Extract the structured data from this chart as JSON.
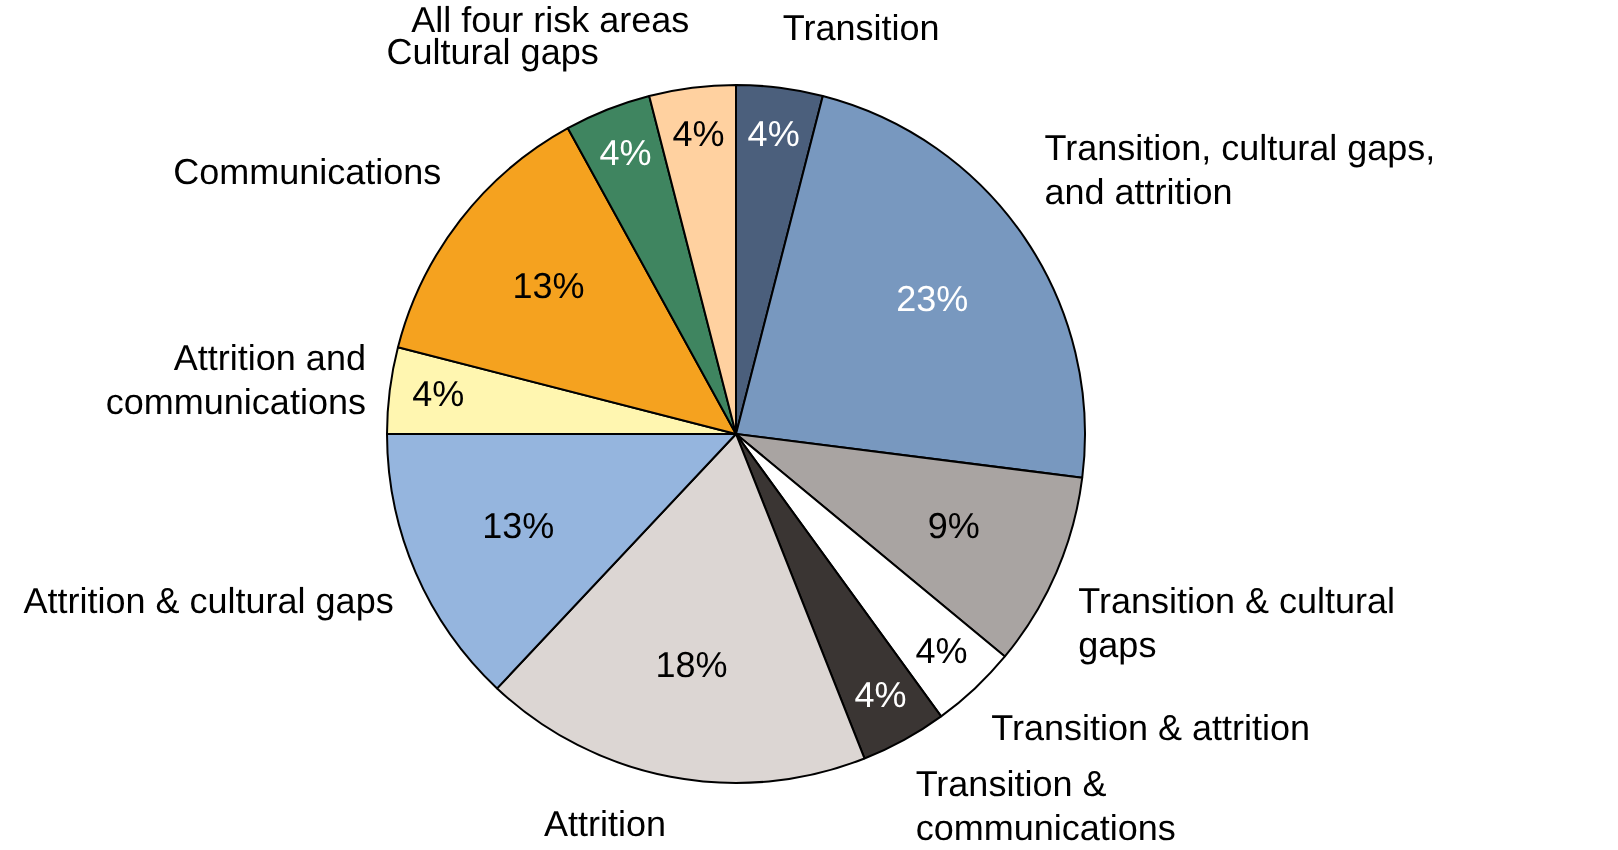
{
  "chart_data": {
    "type": "pie",
    "categories": [
      "Transition",
      "Transition, cultural gaps, and attrition",
      "Transition & cultural gaps",
      "Transition & attrition",
      "Transition & communications",
      "Attrition",
      "Attrition & cultural gaps",
      "Attrition and communications",
      "Communications",
      "Cultural gaps",
      "All four risk areas"
    ],
    "values": [
      4,
      23,
      9,
      4,
      4,
      18,
      13,
      4,
      13,
      4,
      4
    ],
    "colors": [
      "#4b5f7c",
      "#7898bf",
      "#a9a4a2",
      "#ffffff",
      "#3a3533",
      "#dcd6d3",
      "#95b5de",
      "#fff6b0",
      "#f5a21f",
      "#3f8560",
      "#ffd1a0"
    ],
    "value_labels": [
      "4%",
      "23%",
      "9%",
      "4%",
      "4%",
      "18%",
      "13%",
      "4%",
      "13%",
      "4%",
      "4%"
    ],
    "legend": false
  }
}
